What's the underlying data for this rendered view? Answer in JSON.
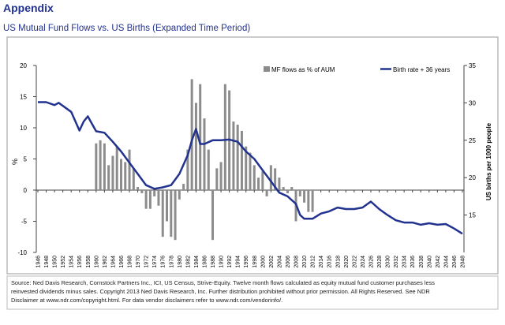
{
  "page": {
    "header": "Appendix",
    "source": [
      "Source: Ned Davis Research, Cornstock Partners Inc., ICI, US Census, Strive-Equity. Twelve month flows calculated as equity mutual fund customer purchases less",
      "reinvested dividends minus sales.  Copyright 2013 Ned Davis Research, Inc. Further distribution prohibited without prior permission. All Rights Reserved.  See NDR",
      "Disclaimer at www.ndr.com/copyright.html. For data vendor disclaimers refer to www.ndr.com/vendorinfo/."
    ]
  },
  "chart_data": {
    "type": "combo",
    "title": "US Mutual Fund Flows vs. US Births (Expanded Time Period)",
    "y_label": "%",
    "y2_label": "US births per 1000 people",
    "xlim": [
      1946,
      2048
    ],
    "xticks": [
      1946,
      1948,
      1950,
      1952,
      1954,
      1956,
      1958,
      1960,
      1962,
      1964,
      1966,
      1968,
      1970,
      1972,
      1974,
      1976,
      1978,
      1980,
      1982,
      1984,
      1986,
      1988,
      1990,
      1992,
      1994,
      1996,
      1998,
      2000,
      2002,
      2004,
      2006,
      2008,
      2010,
      2012,
      2014,
      2016,
      2018,
      2020,
      2022,
      2024,
      2026,
      2028,
      2030,
      2032,
      2034,
      2036,
      2038,
      2040,
      2042,
      2044,
      2046,
      2048
    ],
    "ylim": [
      -10,
      20
    ],
    "yticks": [
      -10,
      -5,
      0,
      5,
      10,
      15,
      20
    ],
    "y2lim": [
      10,
      35
    ],
    "y2ticks": [
      15,
      20,
      25,
      30,
      35
    ],
    "series": [
      {
        "name": "MF flows as % of AUM",
        "type": "bar",
        "color": "#8c8c8c",
        "x": [
          1960,
          1961,
          1962,
          1963,
          1964,
          1965,
          1966,
          1967,
          1968,
          1969,
          1970,
          1971,
          1972,
          1973,
          1974,
          1975,
          1976,
          1977,
          1978,
          1979,
          1980,
          1981,
          1982,
          1983,
          1984,
          1985,
          1986,
          1987,
          1988,
          1989,
          1990,
          1991,
          1992,
          1993,
          1994,
          1995,
          1996,
          1997,
          1998,
          1999,
          2000,
          2001,
          2002,
          2003,
          2004,
          2005,
          2006,
          2007,
          2008,
          2009,
          2010,
          2011,
          2012
        ],
        "values": [
          7.5,
          8,
          7.5,
          4,
          5.5,
          7,
          5,
          4.5,
          6.5,
          3.5,
          0.5,
          -0.5,
          -3,
          -3,
          -1,
          -2.5,
          -7.5,
          -5,
          -7.5,
          -8,
          -1.5,
          1,
          6.5,
          17.8,
          14,
          17,
          11.5,
          6.5,
          -8,
          3.5,
          4.5,
          17,
          16,
          11,
          10.5,
          9.5,
          7,
          6,
          4,
          2,
          3,
          -1,
          4,
          3.5,
          2,
          0.5,
          -0.5,
          0.5,
          -5,
          -1,
          -2,
          -3.5,
          -3.5
        ]
      },
      {
        "name": "Birth rate + 36 years",
        "type": "line",
        "axis": "y2",
        "color": "#22328f",
        "x": [
          1946,
          1948,
          1950,
          1951,
          1954,
          1956,
          1957,
          1958,
          1960,
          1962,
          1964,
          1966,
          1968,
          1970,
          1972,
          1974,
          1976,
          1978,
          1980,
          1982,
          1983,
          1984,
          1985,
          1986,
          1988,
          1990,
          1992,
          1994,
          1996,
          1998,
          2000,
          2002,
          2004,
          2006,
          2008,
          2009,
          2010,
          2012,
          2014,
          2016,
          2018,
          2020,
          2022,
          2024,
          2026,
          2028,
          2030,
          2032,
          2034,
          2036,
          2038,
          2040,
          2042,
          2044,
          2046,
          2048
        ],
        "values": [
          30.1,
          30.1,
          29.7,
          30,
          28.8,
          26.3,
          27.5,
          28.2,
          26.2,
          26,
          24.8,
          23.5,
          22,
          20.5,
          19,
          18.5,
          18.7,
          19,
          20.5,
          23,
          25,
          26.5,
          24.5,
          24.5,
          25,
          25,
          25.1,
          24.8,
          23.5,
          22.5,
          21,
          19.5,
          18,
          17.5,
          16.5,
          15,
          14.5,
          14.5,
          15.2,
          15.5,
          16,
          15.8,
          15.8,
          16,
          16.8,
          15.8,
          15,
          14.3,
          14,
          14,
          13.7,
          13.9,
          13.7,
          13.8,
          13.2,
          12.5
        ]
      }
    ]
  }
}
